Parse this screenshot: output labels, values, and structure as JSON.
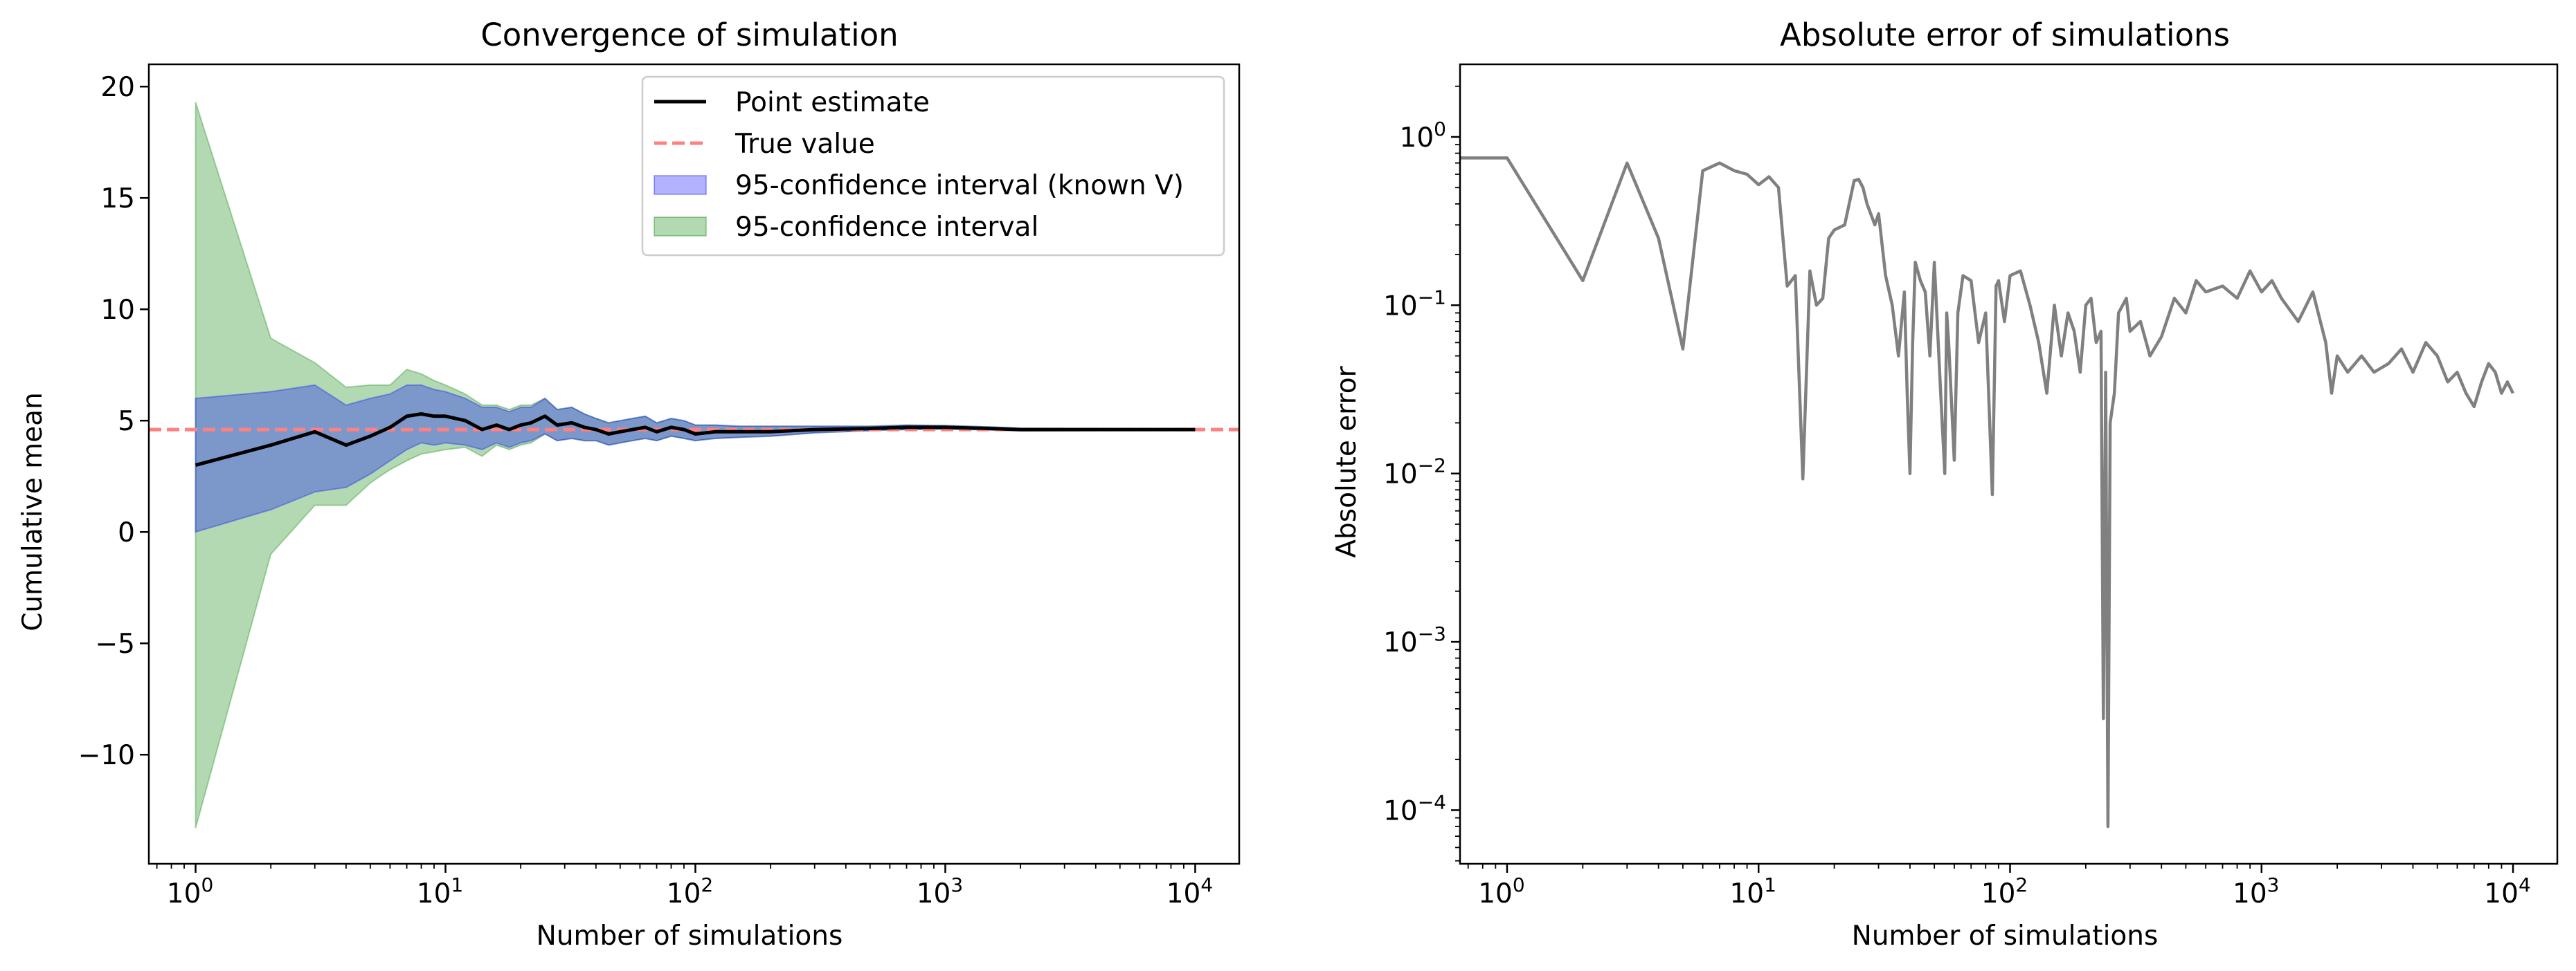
{
  "chart_data": [
    {
      "type": "line",
      "title": "Convergence of simulation",
      "xlabel": "Number of simulations",
      "ylabel": "Cumulative mean",
      "xscale": "log",
      "xlim": [
        0.65,
        15000
      ],
      "ylim": [
        -14.9,
        21.0
      ],
      "xticks": [
        {
          "value": 1,
          "label": "10",
          "exp": "0"
        },
        {
          "value": 10,
          "label": "10",
          "exp": "1"
        },
        {
          "value": 100,
          "label": "10",
          "exp": "2"
        },
        {
          "value": 1000,
          "label": "10",
          "exp": "3"
        },
        {
          "value": 10000,
          "label": "10",
          "exp": "4"
        }
      ],
      "yticks": [
        {
          "value": 20,
          "label": "20"
        },
        {
          "value": 15,
          "label": "15"
        },
        {
          "value": 10,
          "label": "10"
        },
        {
          "value": 5,
          "label": "5"
        },
        {
          "value": 0,
          "label": "0"
        },
        {
          "value": -5,
          "label": "−5"
        },
        {
          "value": -10,
          "label": "−10"
        }
      ],
      "grid": false,
      "legend_position": "top-right",
      "legend": [
        {
          "label": "Point estimate",
          "kind": "line",
          "color": "#000000"
        },
        {
          "label": "True value",
          "kind": "dashed",
          "color": "#ff8080"
        },
        {
          "label": "95-confidence interval (known V)",
          "kind": "patch",
          "color": "#0000ff"
        },
        {
          "label": "95-confidence interval",
          "kind": "patch",
          "color": "#008000"
        }
      ],
      "true_value": 4.6,
      "series": [
        {
          "name": "Point estimate",
          "color": "#000000",
          "x": [
            1,
            2,
            3,
            4,
            5,
            6,
            7,
            8,
            9,
            10,
            12,
            14,
            16,
            18,
            20,
            22,
            25,
            28,
            32,
            36,
            40,
            45,
            50,
            56,
            63,
            70,
            80,
            90,
            100,
            120,
            150,
            200,
            300,
            500,
            700,
            1000,
            1500,
            2000,
            3000,
            5000,
            7000,
            10000
          ],
          "y": [
            3.0,
            3.9,
            4.5,
            3.9,
            4.3,
            4.7,
            5.2,
            5.3,
            5.2,
            5.2,
            5.0,
            4.6,
            4.8,
            4.6,
            4.8,
            4.9,
            5.2,
            4.8,
            4.9,
            4.7,
            4.6,
            4.4,
            4.5,
            4.6,
            4.7,
            4.5,
            4.7,
            4.6,
            4.4,
            4.5,
            4.5,
            4.5,
            4.6,
            4.65,
            4.7,
            4.7,
            4.65,
            4.6,
            4.6,
            4.6,
            4.6,
            4.6
          ]
        },
        {
          "name": "95-confidence interval (known V)",
          "color": "#0000ff",
          "x": [
            1,
            2,
            3,
            4,
            5,
            6,
            7,
            8,
            9,
            10,
            12,
            14,
            16,
            18,
            20,
            22,
            25,
            28,
            32,
            36,
            40,
            45,
            50,
            56,
            63,
            70,
            80,
            90,
            100,
            120,
            150,
            200,
            300,
            500,
            700,
            1000,
            1500,
            2000,
            3000,
            5000,
            7000,
            10000
          ],
          "lower": [
            0.0,
            1.0,
            1.8,
            2.0,
            2.6,
            3.2,
            3.7,
            4.0,
            3.9,
            4.0,
            3.9,
            3.7,
            4.0,
            3.8,
            4.0,
            4.1,
            4.4,
            4.1,
            4.2,
            4.1,
            4.1,
            3.9,
            4.0,
            4.1,
            4.2,
            4.1,
            4.3,
            4.2,
            4.1,
            4.2,
            4.25,
            4.3,
            4.45,
            4.55,
            4.6,
            4.62,
            4.58,
            4.54,
            4.55,
            4.56,
            4.57,
            4.57
          ],
          "upper": [
            6.0,
            6.3,
            6.6,
            5.7,
            6.0,
            6.2,
            6.6,
            6.6,
            6.4,
            6.3,
            6.0,
            5.6,
            5.6,
            5.4,
            5.6,
            5.6,
            6.0,
            5.5,
            5.6,
            5.3,
            5.1,
            4.9,
            5.0,
            5.1,
            5.2,
            4.9,
            5.1,
            5.0,
            4.8,
            4.8,
            4.75,
            4.75,
            4.75,
            4.75,
            4.8,
            4.78,
            4.72,
            4.66,
            4.65,
            4.64,
            4.63,
            4.63
          ]
        },
        {
          "name": "95-confidence interval",
          "color": "#008000",
          "x": [
            1,
            2,
            3,
            4,
            5,
            6,
            7,
            8,
            9,
            10,
            12,
            14,
            16,
            18,
            20,
            22,
            25,
            28,
            32,
            36,
            40,
            45,
            50,
            56,
            63,
            70,
            80,
            90,
            100,
            120,
            150,
            200,
            300,
            500,
            700,
            1000,
            1500,
            2000,
            3000,
            5000,
            7000,
            10000
          ],
          "lower": [
            -13.3,
            -1.0,
            1.2,
            1.2,
            2.2,
            2.8,
            3.2,
            3.5,
            3.6,
            3.7,
            3.8,
            3.4,
            3.9,
            3.7,
            3.9,
            4.0,
            4.4,
            4.1,
            4.2,
            4.1,
            4.1,
            3.9,
            4.0,
            4.1,
            4.2,
            4.1,
            4.3,
            4.2,
            4.1,
            4.2,
            4.25,
            4.3,
            4.45,
            4.55,
            4.6,
            4.62,
            4.58,
            4.54,
            4.55,
            4.56,
            4.57,
            4.57
          ],
          "upper": [
            19.3,
            8.7,
            7.6,
            6.5,
            6.6,
            6.6,
            7.3,
            7.1,
            6.8,
            6.6,
            6.2,
            5.7,
            5.7,
            5.5,
            5.7,
            5.7,
            6.0,
            5.5,
            5.6,
            5.3,
            5.1,
            4.9,
            5.0,
            5.1,
            5.2,
            4.9,
            5.1,
            5.0,
            4.8,
            4.8,
            4.75,
            4.75,
            4.75,
            4.75,
            4.8,
            4.78,
            4.72,
            4.66,
            4.65,
            4.64,
            4.63,
            4.63
          ]
        }
      ]
    },
    {
      "type": "line",
      "title": "Absolute error of simulations",
      "xlabel": "Number of simulations",
      "ylabel": "Absolute error",
      "xscale": "log",
      "yscale": "log",
      "xlim": [
        0.65,
        15000
      ],
      "ylim": [
        4.8e-05,
        2.7
      ],
      "xticks": [
        {
          "value": 1,
          "label": "10",
          "exp": "0"
        },
        {
          "value": 10,
          "label": "10",
          "exp": "1"
        },
        {
          "value": 100,
          "label": "10",
          "exp": "2"
        },
        {
          "value": 1000,
          "label": "10",
          "exp": "3"
        },
        {
          "value": 10000,
          "label": "10",
          "exp": "4"
        }
      ],
      "yticks": [
        {
          "value": 1,
          "label": "10",
          "exp": "0"
        },
        {
          "value": 0.1,
          "label": "10",
          "exp": "−1"
        },
        {
          "value": 0.01,
          "label": "10",
          "exp": "−2"
        },
        {
          "value": 0.001,
          "label": "10",
          "exp": "−3"
        },
        {
          "value": 0.0001,
          "label": "10",
          "exp": "−4"
        }
      ],
      "grid": false,
      "series": [
        {
          "color": "#808080",
          "x": [
            0.65,
            1,
            2,
            3,
            4,
            5,
            6,
            7,
            8,
            9,
            10,
            11,
            12,
            13,
            14,
            15,
            16,
            17,
            18,
            19,
            20,
            22,
            24,
            25,
            26,
            27,
            29,
            30,
            32,
            34,
            36,
            38,
            39,
            40,
            41,
            42,
            44,
            46,
            48,
            50,
            53,
            55,
            56,
            57,
            60,
            62,
            65,
            70,
            75,
            80,
            85,
            88,
            90,
            95,
            100,
            110,
            120,
            130,
            140,
            150,
            160,
            170,
            180,
            190,
            200,
            210,
            220,
            230,
            235,
            240,
            245,
            250,
            260,
            270,
            290,
            300,
            330,
            360,
            400,
            450,
            500,
            550,
            600,
            700,
            800,
            900,
            1000,
            1100,
            1200,
            1400,
            1600,
            1800,
            1900,
            2000,
            2200,
            2500,
            2800,
            3200,
            3600,
            4000,
            4500,
            5000,
            5500,
            6000,
            6500,
            7000,
            7500,
            8000,
            8500,
            9000,
            9500,
            10000
          ],
          "y": [
            0.75,
            0.75,
            0.14,
            0.7,
            0.25,
            0.055,
            0.63,
            0.7,
            0.63,
            0.6,
            0.52,
            0.58,
            0.5,
            0.13,
            0.15,
            0.0093,
            0.16,
            0.1,
            0.11,
            0.25,
            0.28,
            0.3,
            0.55,
            0.56,
            0.5,
            0.4,
            0.3,
            0.35,
            0.15,
            0.1,
            0.05,
            0.12,
            0.03,
            0.01,
            0.06,
            0.18,
            0.14,
            0.12,
            0.05,
            0.18,
            0.03,
            0.01,
            0.09,
            0.06,
            0.012,
            0.09,
            0.15,
            0.14,
            0.06,
            0.09,
            0.0075,
            0.13,
            0.14,
            0.08,
            0.15,
            0.16,
            0.1,
            0.06,
            0.03,
            0.1,
            0.05,
            0.09,
            0.07,
            0.04,
            0.1,
            0.11,
            0.06,
            0.07,
            0.00035,
            0.04,
            8e-05,
            0.02,
            0.03,
            0.09,
            0.11,
            0.07,
            0.08,
            0.05,
            0.065,
            0.11,
            0.09,
            0.14,
            0.12,
            0.13,
            0.11,
            0.16,
            0.12,
            0.14,
            0.11,
            0.08,
            0.12,
            0.06,
            0.03,
            0.05,
            0.04,
            0.05,
            0.04,
            0.045,
            0.055,
            0.04,
            0.06,
            0.05,
            0.035,
            0.04,
            0.03,
            0.025,
            0.035,
            0.045,
            0.04,
            0.03,
            0.035,
            0.03
          ]
        }
      ]
    }
  ]
}
